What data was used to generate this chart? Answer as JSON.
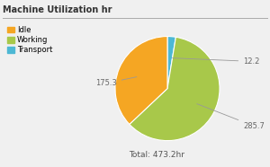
{
  "title": "Machine Utilization hr",
  "labels": [
    "Idle",
    "Working",
    "Transport"
  ],
  "values": [
    175.3,
    285.7,
    12.2
  ],
  "colors": [
    "#F5A623",
    "#A8C84A",
    "#4DB8D4"
  ],
  "total_label": "Total: 473.2hr",
  "title_fontsize": 7,
  "legend_fontsize": 6,
  "annotation_fontsize": 6,
  "total_fontsize": 6.5,
  "background_color": "#f0f0f0",
  "title_color": "#333333",
  "annotation_color": "#666666",
  "line_color": "#aaaaaa",
  "total_color": "#555555"
}
